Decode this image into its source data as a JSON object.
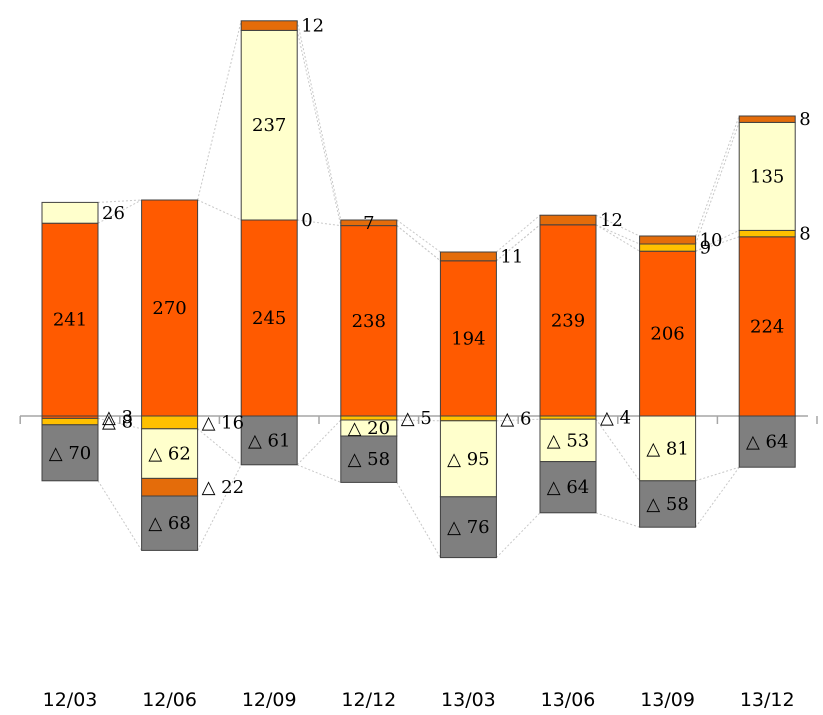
{
  "chart_data": {
    "type": "bar",
    "subtype": "stacked-positive-negative-with-connectors",
    "categories": [
      "12/03",
      "12/06",
      "12/09",
      "12/12",
      "13/03",
      "13/06",
      "13/09",
      "13/12"
    ],
    "positive_series": [
      {
        "key": "dark_orange",
        "color": "#ff5a00",
        "values": [
          241,
          270,
          245,
          238,
          194,
          239,
          206,
          224
        ]
      },
      {
        "key": "yellow",
        "color": "#ffc000",
        "values": [
          0,
          0,
          0,
          0,
          0,
          0,
          9,
          8
        ]
      },
      {
        "key": "light_yellow",
        "color": "#ffffcc",
        "values": [
          26,
          0,
          237,
          0,
          0,
          0,
          0,
          135
        ]
      },
      {
        "key": "top_orange",
        "color": "#e46c0a",
        "values": [
          0,
          0,
          12,
          7,
          11,
          12,
          10,
          8
        ]
      }
    ],
    "negative_series": [
      {
        "key": "neg_orange",
        "color": "#ff5a00",
        "values": [
          3,
          0,
          0,
          0,
          0,
          0,
          0,
          0
        ]
      },
      {
        "key": "neg_yellow",
        "color": "#ffc000",
        "values": [
          8,
          16,
          0,
          5,
          6,
          4,
          0,
          0
        ]
      },
      {
        "key": "neg_light",
        "color": "#ffffcc",
        "values": [
          0,
          62,
          0,
          20,
          95,
          53,
          81,
          0
        ]
      },
      {
        "key": "neg_dark_orange",
        "color": "#e46c0a",
        "values": [
          0,
          22,
          0,
          0,
          0,
          0,
          0,
          0
        ]
      },
      {
        "key": "neg_gray",
        "color": "#7f7f7f",
        "values": [
          70,
          68,
          61,
          58,
          76,
          64,
          58,
          64
        ]
      }
    ],
    "labels": [
      {
        "cat": 0,
        "seg": "dark_orange",
        "pos": "inside",
        "text": "241"
      },
      {
        "cat": 0,
        "seg": "light_yellow",
        "pos": "right",
        "text": "26"
      },
      {
        "cat": 0,
        "seg": "neg_orange",
        "pos": "right",
        "text": "△ 3"
      },
      {
        "cat": 0,
        "seg": "neg_yellow",
        "pos": "right",
        "text": "△ 8"
      },
      {
        "cat": 0,
        "seg": "neg_gray",
        "pos": "inside",
        "text": "△ 70"
      },
      {
        "cat": 1,
        "seg": "dark_orange",
        "pos": "inside",
        "text": "270"
      },
      {
        "cat": 1,
        "seg": "neg_yellow",
        "pos": "right",
        "text": "△ 16"
      },
      {
        "cat": 1,
        "seg": "neg_light",
        "pos": "inside",
        "text": "△ 62"
      },
      {
        "cat": 1,
        "seg": "neg_dark_orange",
        "pos": "right",
        "text": "△ 22"
      },
      {
        "cat": 1,
        "seg": "neg_gray",
        "pos": "inside",
        "text": "△ 68"
      },
      {
        "cat": 2,
        "seg": "dark_orange",
        "pos": "inside",
        "text": "245"
      },
      {
        "cat": 2,
        "seg": "light_yellow",
        "pos": "inside",
        "text": "237"
      },
      {
        "cat": 2,
        "seg": "top_orange",
        "pos": "right",
        "text": "12"
      },
      {
        "cat": 2,
        "seg": "zero_marker",
        "pos": "right",
        "text": "0"
      },
      {
        "cat": 2,
        "seg": "neg_gray",
        "pos": "inside",
        "text": "△ 61"
      },
      {
        "cat": 3,
        "seg": "dark_orange",
        "pos": "inside",
        "text": "238"
      },
      {
        "cat": 3,
        "seg": "top_orange",
        "pos": "inside",
        "text": "7"
      },
      {
        "cat": 3,
        "seg": "neg_yellow",
        "pos": "right",
        "text": "△ 5"
      },
      {
        "cat": 3,
        "seg": "neg_light",
        "pos": "inside",
        "text": "△ 20"
      },
      {
        "cat": 3,
        "seg": "neg_gray",
        "pos": "inside",
        "text": "△ 58"
      },
      {
        "cat": 4,
        "seg": "dark_orange",
        "pos": "inside",
        "text": "194"
      },
      {
        "cat": 4,
        "seg": "top_orange",
        "pos": "right",
        "text": "11"
      },
      {
        "cat": 4,
        "seg": "neg_yellow",
        "pos": "right",
        "text": "△ 6"
      },
      {
        "cat": 4,
        "seg": "neg_light",
        "pos": "inside",
        "text": "△ 95"
      },
      {
        "cat": 4,
        "seg": "neg_gray",
        "pos": "inside",
        "text": "△ 76"
      },
      {
        "cat": 5,
        "seg": "dark_orange",
        "pos": "inside",
        "text": "239"
      },
      {
        "cat": 5,
        "seg": "top_orange",
        "pos": "right",
        "text": "12"
      },
      {
        "cat": 5,
        "seg": "neg_yellow",
        "pos": "right",
        "text": "△ 4"
      },
      {
        "cat": 5,
        "seg": "neg_light",
        "pos": "inside",
        "text": "△ 53"
      },
      {
        "cat": 5,
        "seg": "neg_gray",
        "pos": "inside",
        "text": "△ 64"
      },
      {
        "cat": 6,
        "seg": "dark_orange",
        "pos": "inside",
        "text": "206"
      },
      {
        "cat": 6,
        "seg": "top_orange",
        "pos": "right",
        "text": "10"
      },
      {
        "cat": 6,
        "seg": "yellow",
        "pos": "right",
        "text": "9"
      },
      {
        "cat": 6,
        "seg": "neg_light",
        "pos": "inside",
        "text": "△ 81"
      },
      {
        "cat": 6,
        "seg": "neg_gray",
        "pos": "inside",
        "text": "△ 58"
      },
      {
        "cat": 7,
        "seg": "dark_orange",
        "pos": "inside",
        "text": "224"
      },
      {
        "cat": 7,
        "seg": "light_yellow",
        "pos": "inside",
        "text": "135"
      },
      {
        "cat": 7,
        "seg": "yellow",
        "pos": "right",
        "text": "8"
      },
      {
        "cat": 7,
        "seg": "top_orange",
        "pos": "right",
        "text": "8"
      },
      {
        "cat": 7,
        "seg": "neg_gray",
        "pos": "inside",
        "text": "△ 64"
      }
    ],
    "connector_lines": true,
    "colors": {
      "axis": "#a6a6a6",
      "connector": "#c8c8c8",
      "border": "#404040"
    }
  }
}
